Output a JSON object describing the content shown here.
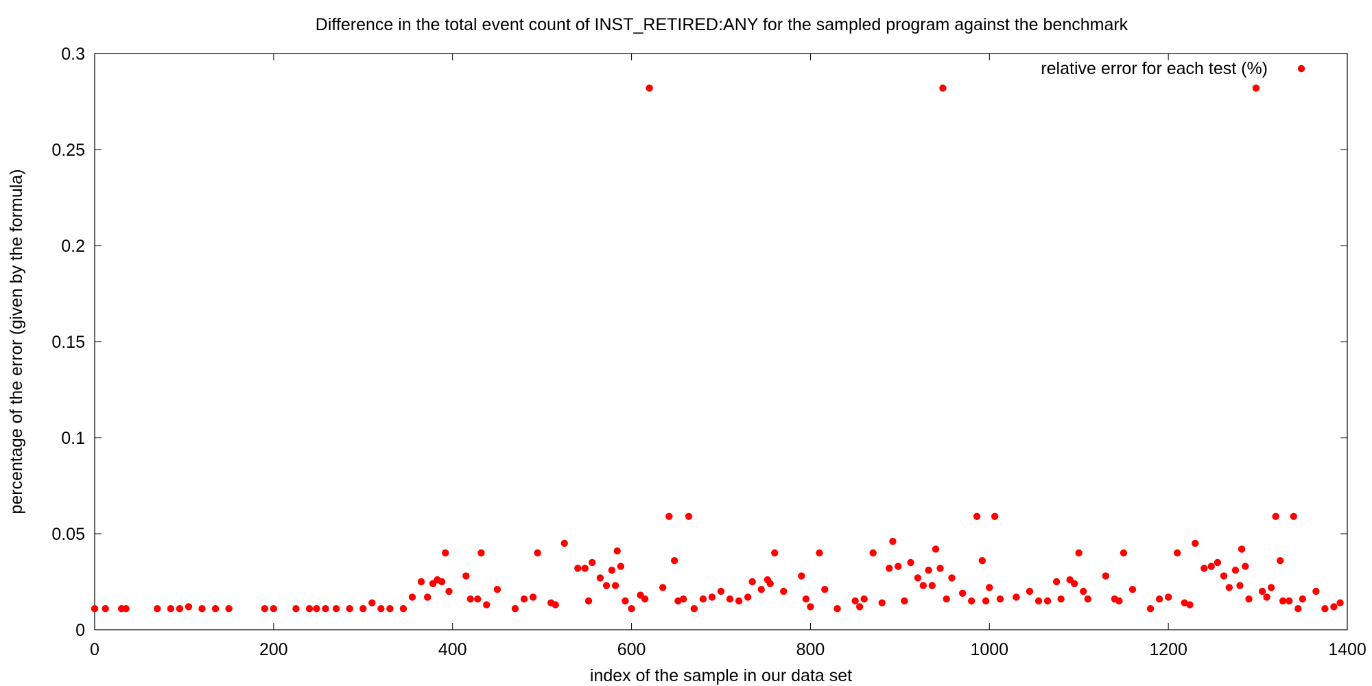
{
  "chart_data": {
    "type": "scatter",
    "title": "Difference in the total event count of INST_RETIRED:ANY for the sampled program against the benchmark",
    "xlabel": "index of the sample in our data set",
    "ylabel": "percentage of the error (given by the formula)",
    "xlim": [
      0,
      1400
    ],
    "ylim": [
      0,
      0.3
    ],
    "x_ticks": [
      0,
      200,
      400,
      600,
      800,
      1000,
      1200,
      1400
    ],
    "y_ticks": [
      0,
      0.05,
      0.1,
      0.15,
      0.2,
      0.25,
      0.3
    ],
    "x_tick_labels": [
      "0",
      "200",
      "400",
      "600",
      "800",
      "1000",
      "1200",
      "1400"
    ],
    "y_tick_labels": [
      "0",
      "0.05",
      "0.1",
      "0.15",
      "0.2",
      "0.25",
      "0.3"
    ],
    "grid": false,
    "legend_position": "top-right",
    "colors": {
      "series": "#ff0000"
    },
    "series": [
      {
        "name": "relative error for each test (%)",
        "points": [
          [
            0,
            0.011
          ],
          [
            12,
            0.011
          ],
          [
            30,
            0.011
          ],
          [
            35,
            0.011
          ],
          [
            70,
            0.011
          ],
          [
            85,
            0.011
          ],
          [
            95,
            0.011
          ],
          [
            105,
            0.012
          ],
          [
            120,
            0.011
          ],
          [
            135,
            0.011
          ],
          [
            150,
            0.011
          ],
          [
            190,
            0.011
          ],
          [
            200,
            0.011
          ],
          [
            225,
            0.011
          ],
          [
            240,
            0.011
          ],
          [
            248,
            0.011
          ],
          [
            258,
            0.011
          ],
          [
            270,
            0.011
          ],
          [
            285,
            0.011
          ],
          [
            300,
            0.011
          ],
          [
            310,
            0.014
          ],
          [
            320,
            0.011
          ],
          [
            330,
            0.011
          ],
          [
            345,
            0.011
          ],
          [
            355,
            0.017
          ],
          [
            365,
            0.025
          ],
          [
            372,
            0.017
          ],
          [
            378,
            0.024
          ],
          [
            383,
            0.026
          ],
          [
            388,
            0.025
          ],
          [
            392,
            0.04
          ],
          [
            396,
            0.02
          ],
          [
            415,
            0.028
          ],
          [
            420,
            0.016
          ],
          [
            428,
            0.016
          ],
          [
            432,
            0.04
          ],
          [
            438,
            0.013
          ],
          [
            450,
            0.021
          ],
          [
            470,
            0.011
          ],
          [
            480,
            0.016
          ],
          [
            490,
            0.017
          ],
          [
            495,
            0.04
          ],
          [
            510,
            0.014
          ],
          [
            515,
            0.013
          ],
          [
            525,
            0.045
          ],
          [
            540,
            0.032
          ],
          [
            548,
            0.032
          ],
          [
            552,
            0.015
          ],
          [
            556,
            0.035
          ],
          [
            565,
            0.027
          ],
          [
            572,
            0.023
          ],
          [
            578,
            0.031
          ],
          [
            582,
            0.023
          ],
          [
            584,
            0.041
          ],
          [
            588,
            0.033
          ],
          [
            593,
            0.015
          ],
          [
            600,
            0.011
          ],
          [
            610,
            0.018
          ],
          [
            615,
            0.016
          ],
          [
            620,
            0.282
          ],
          [
            635,
            0.022
          ],
          [
            642,
            0.059
          ],
          [
            648,
            0.036
          ],
          [
            652,
            0.015
          ],
          [
            658,
            0.016
          ],
          [
            664,
            0.059
          ],
          [
            670,
            0.011
          ],
          [
            680,
            0.016
          ],
          [
            690,
            0.017
          ],
          [
            700,
            0.02
          ],
          [
            710,
            0.016
          ],
          [
            720,
            0.015
          ],
          [
            730,
            0.017
          ],
          [
            735,
            0.025
          ],
          [
            745,
            0.021
          ],
          [
            752,
            0.026
          ],
          [
            755,
            0.024
          ],
          [
            760,
            0.04
          ],
          [
            770,
            0.02
          ],
          [
            790,
            0.028
          ],
          [
            795,
            0.016
          ],
          [
            800,
            0.012
          ],
          [
            810,
            0.04
          ],
          [
            816,
            0.021
          ],
          [
            830,
            0.011
          ],
          [
            850,
            0.015
          ],
          [
            855,
            0.012
          ],
          [
            860,
            0.016
          ],
          [
            870,
            0.04
          ],
          [
            880,
            0.014
          ],
          [
            888,
            0.032
          ],
          [
            892,
            0.046
          ],
          [
            898,
            0.033
          ],
          [
            905,
            0.015
          ],
          [
            912,
            0.035
          ],
          [
            920,
            0.027
          ],
          [
            926,
            0.023
          ],
          [
            932,
            0.031
          ],
          [
            936,
            0.023
          ],
          [
            940,
            0.042
          ],
          [
            945,
            0.032
          ],
          [
            948,
            0.282
          ],
          [
            952,
            0.016
          ],
          [
            958,
            0.027
          ],
          [
            970,
            0.019
          ],
          [
            980,
            0.015
          ],
          [
            986,
            0.059
          ],
          [
            992,
            0.036
          ],
          [
            996,
            0.015
          ],
          [
            1000,
            0.022
          ],
          [
            1006,
            0.059
          ],
          [
            1012,
            0.016
          ],
          [
            1030,
            0.017
          ],
          [
            1045,
            0.02
          ],
          [
            1055,
            0.015
          ],
          [
            1065,
            0.015
          ],
          [
            1075,
            0.025
          ],
          [
            1080,
            0.016
          ],
          [
            1090,
            0.026
          ],
          [
            1095,
            0.024
          ],
          [
            1100,
            0.04
          ],
          [
            1105,
            0.02
          ],
          [
            1110,
            0.016
          ],
          [
            1130,
            0.028
          ],
          [
            1140,
            0.016
          ],
          [
            1145,
            0.015
          ],
          [
            1150,
            0.04
          ],
          [
            1160,
            0.021
          ],
          [
            1180,
            0.011
          ],
          [
            1190,
            0.016
          ],
          [
            1200,
            0.017
          ],
          [
            1210,
            0.04
          ],
          [
            1218,
            0.014
          ],
          [
            1224,
            0.013
          ],
          [
            1230,
            0.045
          ],
          [
            1240,
            0.032
          ],
          [
            1248,
            0.033
          ],
          [
            1255,
            0.035
          ],
          [
            1262,
            0.028
          ],
          [
            1268,
            0.022
          ],
          [
            1275,
            0.031
          ],
          [
            1280,
            0.023
          ],
          [
            1282,
            0.042
          ],
          [
            1286,
            0.033
          ],
          [
            1290,
            0.016
          ],
          [
            1298,
            0.282
          ],
          [
            1305,
            0.02
          ],
          [
            1310,
            0.017
          ],
          [
            1315,
            0.022
          ],
          [
            1320,
            0.059
          ],
          [
            1325,
            0.036
          ],
          [
            1328,
            0.015
          ],
          [
            1335,
            0.015
          ],
          [
            1340,
            0.059
          ],
          [
            1345,
            0.011
          ],
          [
            1350,
            0.016
          ],
          [
            1365,
            0.02
          ],
          [
            1375,
            0.011
          ],
          [
            1385,
            0.012
          ],
          [
            1392,
            0.014
          ]
        ]
      }
    ]
  }
}
